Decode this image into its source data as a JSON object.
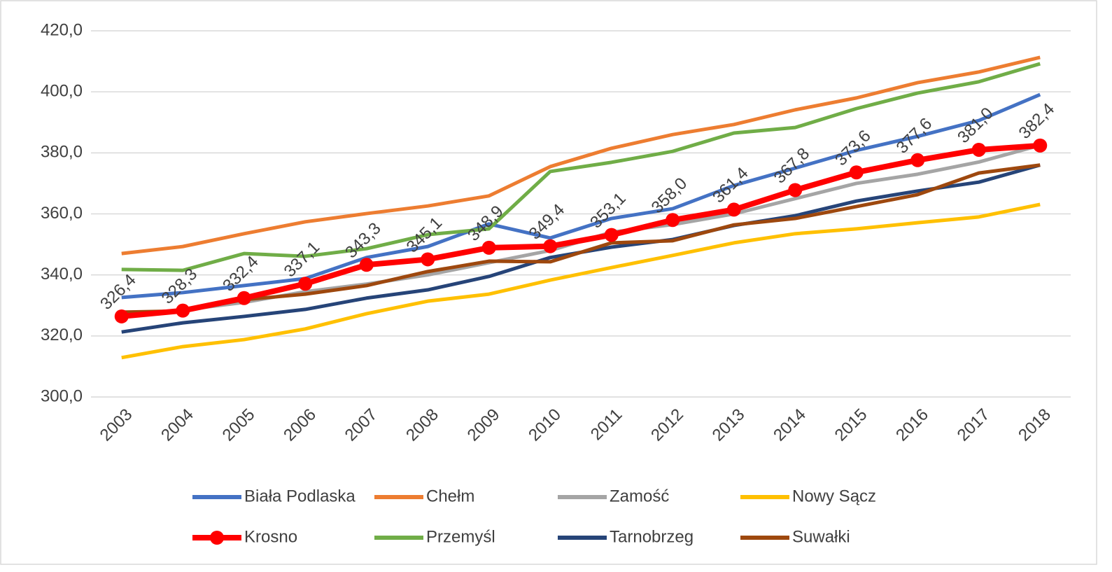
{
  "chart_data": {
    "type": "line",
    "categories": [
      "2003",
      "2004",
      "2005",
      "2006",
      "2007",
      "2008",
      "2009",
      "2010",
      "2011",
      "2012",
      "2013",
      "2014",
      "2015",
      "2016",
      "2017",
      "2018"
    ],
    "series": [
      {
        "name": "Biała Podlaska",
        "color": "#4472c4",
        "values": [
          332.6,
          334.2,
          336.5,
          338.8,
          345.7,
          349.3,
          356.7,
          352.1,
          358.5,
          361.7,
          369.3,
          375.0,
          380.8,
          385.4,
          390.6,
          399.1
        ]
      },
      {
        "name": "Chełm",
        "color": "#ed7d31",
        "values": [
          347.0,
          349.3,
          353.5,
          357.4,
          360.1,
          362.6,
          365.9,
          375.5,
          381.5,
          386.0,
          389.3,
          394.1,
          398.0,
          403.0,
          406.5,
          411.3
        ]
      },
      {
        "name": "Zamość",
        "color": "#a5a5a5",
        "values": [
          327.0,
          328.5,
          331.0,
          334.5,
          337.0,
          340.0,
          344.0,
          348.0,
          354.0,
          356.5,
          360.0,
          365.0,
          370.0,
          373.0,
          377.0,
          382.5
        ]
      },
      {
        "name": "Nowy Sącz",
        "color": "#ffc000",
        "values": [
          312.9,
          316.5,
          318.8,
          322.3,
          327.3,
          331.4,
          333.7,
          338.3,
          342.4,
          346.4,
          350.5,
          353.5,
          355.1,
          357.1,
          359.0,
          363.1
        ]
      },
      {
        "name": "Krosno",
        "color": "#ff0000",
        "markers": true,
        "values": [
          326.4,
          328.3,
          332.4,
          337.1,
          343.3,
          345.1,
          348.9,
          349.4,
          353.1,
          358.0,
          361.4,
          367.8,
          373.6,
          377.6,
          381.0,
          382.4
        ],
        "value_labels": [
          "326,4",
          "328,3",
          "332,4",
          "337,1",
          "343,3",
          "345,1",
          "348,9",
          "349,4",
          "353,1",
          "358,0",
          "361,4",
          "367,8",
          "373,6",
          "377,6",
          "381,0",
          "382,4"
        ]
      },
      {
        "name": "Przemyśl",
        "color": "#70ad47",
        "values": [
          341.8,
          341.5,
          347.0,
          346.1,
          348.6,
          353.2,
          355.1,
          373.9,
          376.9,
          380.5,
          386.5,
          388.3,
          394.5,
          399.6,
          403.3,
          409.2
        ]
      },
      {
        "name": "Tarnobrzeg",
        "color": "#264478",
        "values": [
          321.3,
          324.3,
          326.4,
          328.7,
          332.4,
          335.1,
          339.5,
          345.7,
          349.1,
          351.6,
          356.2,
          359.4,
          364.2,
          367.5,
          370.4,
          376.0
        ]
      },
      {
        "name": "Suwałki",
        "color": "#9e480e",
        "values": [
          327.8,
          328.2,
          331.9,
          333.7,
          336.5,
          341.1,
          344.5,
          344.3,
          350.5,
          351.2,
          356.4,
          358.5,
          362.4,
          366.3,
          373.4,
          376.0
        ]
      }
    ],
    "ylim": [
      300,
      420
    ],
    "yticks": [
      {
        "value": 300,
        "label": "300,0"
      },
      {
        "value": 320,
        "label": "320,0"
      },
      {
        "value": 340,
        "label": "340,0"
      },
      {
        "value": 360,
        "label": "360,0"
      },
      {
        "value": 380,
        "label": "380,0"
      },
      {
        "value": 400,
        "label": "400,0"
      },
      {
        "value": 420,
        "label": "420,0"
      }
    ],
    "grid": true,
    "legend": "bottom"
  }
}
